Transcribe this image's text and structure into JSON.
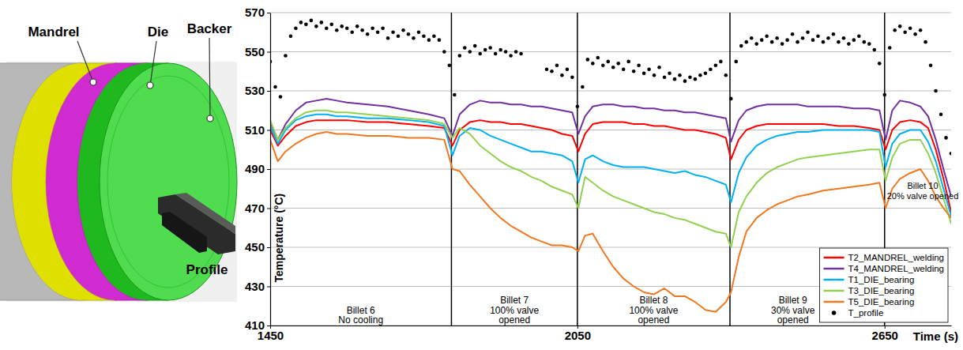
{
  "chart_data": {
    "type": "line",
    "x_label": "Time (s)",
    "y_label": "Temperature (°C)",
    "xlim": [
      1450,
      2780
    ],
    "xticks": [
      1450,
      2050,
      2650
    ],
    "ylim": [
      410,
      570
    ],
    "yticks": [
      410,
      430,
      450,
      470,
      490,
      510,
      530,
      550,
      570
    ],
    "grid": "y",
    "legend": "lower right",
    "billet_boundaries": [
      1804,
      2050,
      2348,
      2650
    ],
    "annotations": [
      [
        "Billet 6",
        "No cooling"
      ],
      [
        "Billet 7",
        "100% valve",
        "opened"
      ],
      [
        "Billet 8",
        "100% valve",
        "opened"
      ],
      [
        "Billet 9",
        "30% valve",
        "opened"
      ],
      [
        "Billet 10",
        "20% valve opened"
      ]
    ],
    "x": [
      1450,
      1465,
      1480,
      1500,
      1520,
      1540,
      1560,
      1580,
      1600,
      1640,
      1680,
      1720,
      1760,
      1790,
      1806,
      1820,
      1840,
      1860,
      1880,
      1900,
      1920,
      1940,
      1960,
      1980,
      2000,
      2020,
      2040,
      2052,
      2065,
      2080,
      2100,
      2120,
      2140,
      2160,
      2180,
      2200,
      2220,
      2240,
      2260,
      2280,
      2300,
      2320,
      2340,
      2350,
      2365,
      2380,
      2400,
      2420,
      2440,
      2460,
      2480,
      2500,
      2530,
      2560,
      2590,
      2620,
      2640,
      2652,
      2665,
      2680,
      2700,
      2720,
      2735,
      2750,
      2765,
      2780
    ],
    "series": [
      {
        "name": "T2_MANDREL_welding",
        "color": "#ff0000",
        "values": [
          510,
          502,
          507,
          512,
          514,
          515,
          515,
          515,
          515,
          514,
          514,
          513,
          512,
          511,
          502,
          510,
          514,
          515,
          514,
          514,
          513,
          513,
          512,
          511,
          510,
          508,
          507,
          499,
          508,
          513,
          514,
          514,
          514,
          513,
          513,
          512,
          512,
          511,
          510,
          510,
          509,
          508,
          506,
          495,
          505,
          510,
          512,
          513,
          513,
          513,
          513,
          513,
          513,
          512,
          512,
          511,
          510,
          500,
          510,
          514,
          515,
          514,
          511,
          500,
          485,
          468
        ]
      },
      {
        "name": "T4_MANDREL_welding",
        "color": "#7030a0",
        "values": [
          514,
          505,
          513,
          520,
          524,
          525,
          526,
          525,
          524,
          523,
          522,
          520,
          518,
          516,
          507,
          518,
          523,
          525,
          524,
          524,
          523,
          523,
          522,
          522,
          521,
          520,
          519,
          508,
          517,
          522,
          523,
          523,
          522,
          522,
          521,
          521,
          520,
          520,
          519,
          519,
          518,
          517,
          516,
          504,
          515,
          520,
          522,
          523,
          523,
          523,
          523,
          522,
          522,
          522,
          521,
          521,
          520,
          505,
          520,
          525,
          524,
          522,
          517,
          505,
          490,
          476
        ]
      },
      {
        "name": "T1_DIE_bearing",
        "color": "#00b0f0",
        "values": [
          512,
          503,
          510,
          515,
          517,
          518,
          518,
          517,
          517,
          516,
          516,
          515,
          514,
          512,
          497,
          507,
          511,
          510,
          507,
          505,
          503,
          501,
          499,
          499,
          498,
          497,
          494,
          483,
          495,
          497,
          494,
          492,
          491,
          491,
          491,
          490,
          489,
          488,
          489,
          487,
          486,
          484,
          482,
          473,
          488,
          496,
          502,
          505,
          507,
          508,
          509,
          509,
          510,
          510,
          510,
          510,
          509,
          491,
          503,
          508,
          510,
          510,
          504,
          494,
          480,
          466
        ]
      },
      {
        "name": "T3_DIE_bearing",
        "color": "#92d050",
        "values": [
          515,
          505,
          511,
          516,
          519,
          520,
          520,
          519,
          519,
          518,
          517,
          516,
          515,
          513,
          506,
          511,
          508,
          502,
          498,
          494,
          491,
          489,
          486,
          484,
          481,
          479,
          477,
          470,
          486,
          483,
          479,
          476,
          474,
          472,
          470,
          468,
          467,
          465,
          464,
          462,
          460,
          458,
          457,
          450,
          468,
          476,
          483,
          488,
          491,
          493,
          495,
          496,
          497,
          498,
          499,
          500,
          500,
          484,
          496,
          503,
          505,
          505,
          498,
          488,
          475,
          462
        ]
      },
      {
        "name": "T5_DIE_bearing",
        "color": "#f07820",
        "values": [
          505,
          494,
          499,
          503,
          506,
          508,
          509,
          508,
          508,
          507,
          507,
          506,
          506,
          505,
          490,
          489,
          482,
          476,
          470,
          465,
          461,
          458,
          455,
          453,
          451,
          451,
          450,
          448,
          456,
          457,
          448,
          440,
          434,
          430,
          427,
          426,
          429,
          425,
          425,
          422,
          418,
          417,
          422,
          427,
          445,
          458,
          465,
          469,
          472,
          474,
          476,
          477,
          479,
          480,
          481,
          482,
          483,
          470,
          480,
          485,
          488,
          490,
          484,
          476,
          470,
          465
        ]
      },
      {
        "name": "T_profile",
        "color": "#000000",
        "type": "scatter",
        "marker": "circle",
        "x": [
          1450,
          1460,
          1470,
          1480,
          1490,
          1500,
          1510,
          1520,
          1530,
          1540,
          1550,
          1560,
          1570,
          1580,
          1590,
          1600,
          1610,
          1620,
          1630,
          1640,
          1650,
          1660,
          1670,
          1680,
          1690,
          1700,
          1710,
          1720,
          1730,
          1740,
          1750,
          1760,
          1770,
          1780,
          1790,
          1800,
          1810,
          1820,
          1830,
          1840,
          1850,
          1860,
          1870,
          1880,
          1890,
          1900,
          1910,
          1920,
          1930,
          1940,
          1950,
          1960,
          1970,
          1980,
          1990,
          2000,
          2010,
          2020,
          2030,
          2040,
          2050,
          2060,
          2070,
          2080,
          2090,
          2100,
          2110,
          2120,
          2130,
          2140,
          2150,
          2160,
          2170,
          2180,
          2190,
          2200,
          2210,
          2220,
          2230,
          2240,
          2250,
          2260,
          2270,
          2280,
          2290,
          2300,
          2310,
          2320,
          2330,
          2340,
          2350,
          2360,
          2370,
          2380,
          2390,
          2400,
          2410,
          2420,
          2430,
          2440,
          2450,
          2460,
          2470,
          2480,
          2490,
          2500,
          2510,
          2520,
          2530,
          2540,
          2550,
          2560,
          2570,
          2580,
          2590,
          2600,
          2610,
          2620,
          2630,
          2640,
          2650,
          2660,
          2670,
          2680,
          2690,
          2700,
          2710,
          2720,
          2730,
          2740,
          2750,
          2760,
          2770,
          2780
        ],
        "values": [
          545,
          532,
          527,
          548,
          558,
          562,
          565,
          564,
          566,
          563,
          565,
          562,
          564,
          561,
          563,
          562,
          560,
          563,
          561,
          559,
          562,
          560,
          562,
          557,
          560,
          558,
          561,
          559,
          557,
          560,
          558,
          556,
          558,
          556,
          550,
          543,
          528,
          548,
          552,
          550,
          553,
          549,
          551,
          552,
          549,
          551,
          550,
          548,
          550,
          549,
          null,
          null,
          null,
          null,
          541,
          540,
          543,
          538,
          541,
          537,
          522,
          532,
          546,
          544,
          547,
          543,
          545,
          542,
          544,
          541,
          545,
          540,
          543,
          539,
          541,
          538,
          542,
          537,
          539,
          536,
          538,
          535,
          537,
          536,
          538,
          539,
          541,
          543,
          545,
          538,
          526,
          545,
          553,
          555,
          557,
          554,
          556,
          558,
          555,
          557,
          554,
          556,
          559,
          555,
          557,
          560,
          556,
          558,
          555,
          557,
          559,
          555,
          557,
          554,
          556,
          558,
          555,
          554,
          551,
          544,
          528,
          552,
          561,
          563,
          560,
          562,
          559,
          561,
          555,
          543,
          530,
          518,
          506,
          498
        ]
      }
    ]
  },
  "diagram": {
    "labels": [
      "Mandrel",
      "Die",
      "Backer",
      "Profile"
    ]
  }
}
